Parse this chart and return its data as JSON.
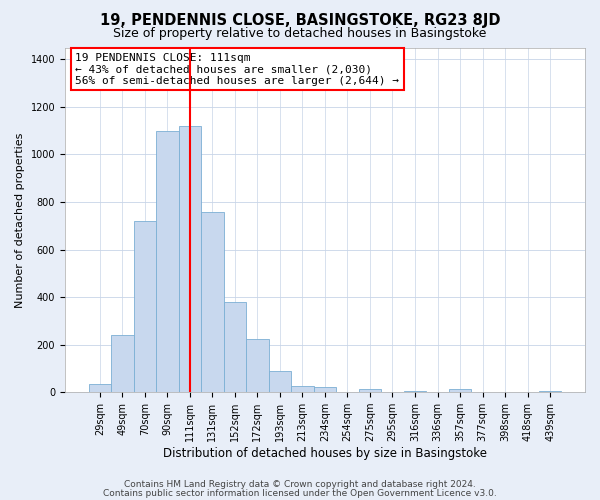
{
  "title": "19, PENDENNIS CLOSE, BASINGSTOKE, RG23 8JD",
  "subtitle": "Size of property relative to detached houses in Basingstoke",
  "xlabel": "Distribution of detached houses by size in Basingstoke",
  "ylabel": "Number of detached properties",
  "categories": [
    "29sqm",
    "49sqm",
    "70sqm",
    "90sqm",
    "111sqm",
    "131sqm",
    "152sqm",
    "172sqm",
    "193sqm",
    "213sqm",
    "234sqm",
    "254sqm",
    "275sqm",
    "295sqm",
    "316sqm",
    "336sqm",
    "357sqm",
    "377sqm",
    "398sqm",
    "418sqm",
    "439sqm"
  ],
  "values": [
    35,
    240,
    720,
    1100,
    1120,
    760,
    380,
    225,
    90,
    28,
    20,
    0,
    15,
    0,
    5,
    0,
    15,
    0,
    0,
    0,
    5
  ],
  "bar_color": "#c8d8ee",
  "bar_edge_color": "#7bafd4",
  "vline_color": "red",
  "vline_idx": 4,
  "annotation_text": "19 PENDENNIS CLOSE: 111sqm\n← 43% of detached houses are smaller (2,030)\n56% of semi-detached houses are larger (2,644) →",
  "ylim": [
    0,
    1450
  ],
  "yticks": [
    0,
    200,
    400,
    600,
    800,
    1000,
    1200,
    1400
  ],
  "footer1": "Contains HM Land Registry data © Crown copyright and database right 2024.",
  "footer2": "Contains public sector information licensed under the Open Government Licence v3.0.",
  "background_color": "#e8eef8",
  "plot_bg_color": "#ffffff",
  "title_fontsize": 10.5,
  "subtitle_fontsize": 9,
  "annotation_fontsize": 8,
  "footer_fontsize": 6.5,
  "ylabel_fontsize": 8,
  "xlabel_fontsize": 8.5,
  "tick_fontsize": 7
}
